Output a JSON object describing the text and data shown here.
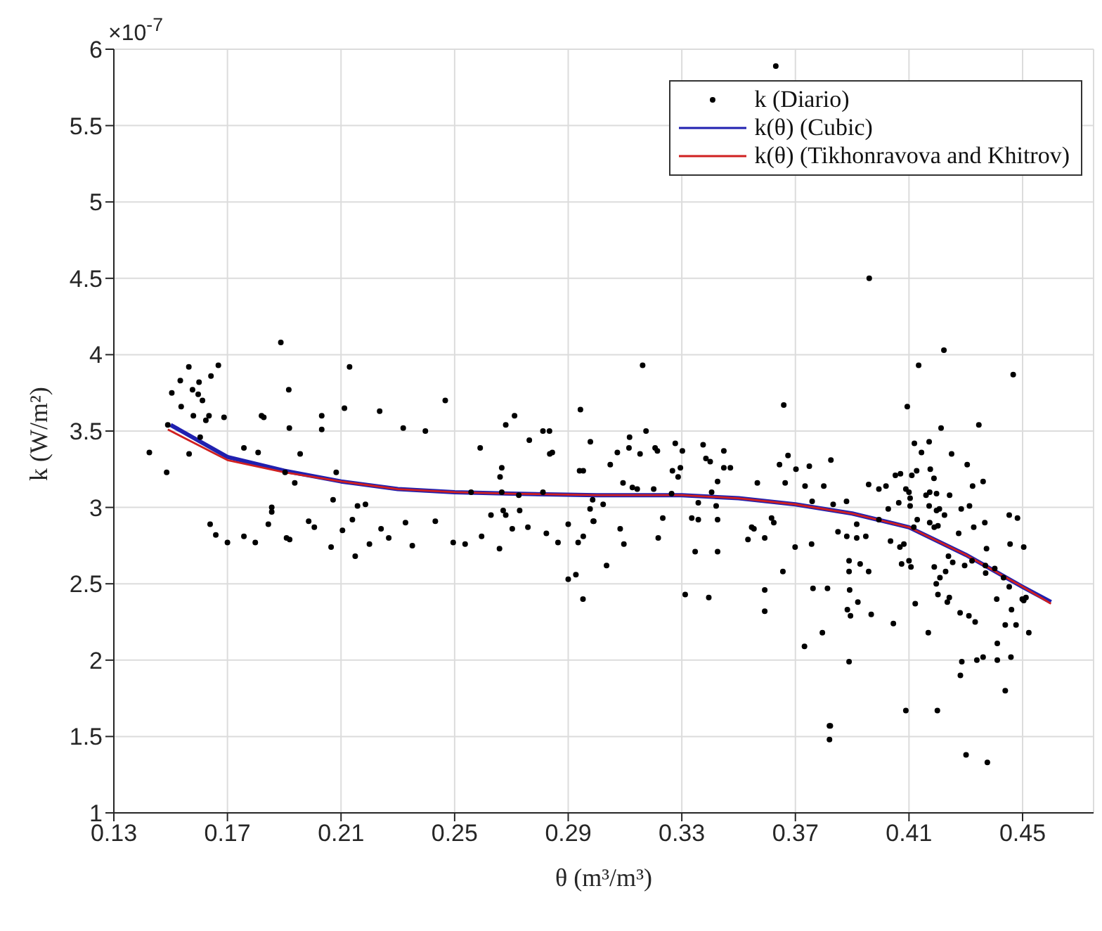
{
  "chart_data": {
    "type": "scatter",
    "xlabel": "θ (m³/m³)",
    "ylabel": "k (W/m²)",
    "annotations": [
      "×10$^{-7}$"
    ],
    "xlim": [
      0.13,
      0.475
    ],
    "xticks": [
      0.13,
      0.17,
      0.21,
      0.25,
      0.29,
      0.33,
      0.37,
      0.41,
      0.45
    ],
    "ylim": [
      1,
      6
    ],
    "yticks": [
      1,
      1.5,
      2,
      2.5,
      3,
      3.5,
      4,
      4.5,
      5,
      5.5,
      6
    ],
    "grid": true,
    "legend": "top right",
    "series": [
      {
        "name": "k (Diario)",
        "marker": "circle",
        "color": "#000000",
        "x": [
          0.1425,
          0.1486,
          0.149,
          0.1504,
          0.1534,
          0.1564,
          0.1537,
          0.1577,
          0.16,
          0.1597,
          0.1612,
          0.1642,
          0.1668,
          0.158,
          0.1624,
          0.1635,
          0.1688,
          0.1604,
          0.1565,
          0.1639,
          0.1659,
          0.17,
          0.1758,
          0.1798,
          0.1758,
          0.1808,
          0.182,
          0.1828,
          0.1888,
          0.1916,
          0.1918,
          0.1903,
          0.1937,
          0.1956,
          0.1856,
          0.1856,
          0.1844,
          0.1908,
          0.1919,
          0.1986,
          0.2006,
          0.2032,
          0.2032,
          0.2072,
          0.2065,
          0.2105,
          0.2112,
          0.2083,
          0.213,
          0.2236,
          0.2319,
          0.2397,
          0.2467,
          0.2158,
          0.2186,
          0.214,
          0.215,
          0.22,
          0.2241,
          0.2268,
          0.2327,
          0.2351,
          0.2432,
          0.2495,
          0.2537,
          0.2558,
          0.259,
          0.2595,
          0.2628,
          0.2658,
          0.266,
          0.2666,
          0.2666,
          0.2671,
          0.268,
          0.268,
          0.2711,
          0.2703,
          0.2729,
          0.2726,
          0.2758,
          0.2763,
          0.2811,
          0.2834,
          0.2835,
          0.2844,
          0.2811,
          0.2823,
          0.2864,
          0.29,
          0.29,
          0.2927,
          0.2935,
          0.2943,
          0.294,
          0.2953,
          0.2952,
          0.2953,
          0.2977,
          0.2978,
          0.2988,
          0.3162,
          0.3174,
          0.3073,
          0.3116,
          0.3114,
          0.3153,
          0.3206,
          0.3214,
          0.3048,
          0.3093,
          0.3126,
          0.3143,
          0.3201,
          0.2986,
          0.3023,
          0.299,
          0.3083,
          0.3096,
          0.3035,
          0.3233,
          0.3217,
          0.3267,
          0.3287,
          0.3295,
          0.3302,
          0.3277,
          0.3264,
          0.3312,
          0.3335,
          0.3358,
          0.3358,
          0.3347,
          0.3375,
          0.3385,
          0.34,
          0.3395,
          0.3421,
          0.3426,
          0.3448,
          0.3448,
          0.3471,
          0.3426,
          0.3426,
          0.3405,
          0.3566,
          0.3533,
          0.3546,
          0.3554,
          0.3592,
          0.3592,
          0.3592,
          0.3616,
          0.3624,
          0.3644,
          0.3674,
          0.3664,
          0.3659,
          0.3656,
          0.3699,
          0.3702,
          0.3749,
          0.3734,
          0.3759,
          0.3757,
          0.3762,
          0.3813,
          0.3732,
          0.3795,
          0.3825,
          0.38,
          0.3823,
          0.4223,
          0.4134,
          0.4467,
          0.4094,
          0.4213,
          0.4346,
          0.4119,
          0.4171,
          0.4144,
          0.425,
          0.4175,
          0.4305,
          0.4052,
          0.407,
          0.411,
          0.4127,
          0.4188,
          0.3958,
          0.3994,
          0.4019,
          0.4089,
          0.41,
          0.416,
          0.4173,
          0.4197,
          0.4243,
          0.4324,
          0.4361,
          0.4104,
          0.4104,
          0.4064,
          0.4027,
          0.388,
          0.3833,
          0.3994,
          0.385,
          0.3881,
          0.3916,
          0.3916,
          0.3948,
          0.4129,
          0.4171,
          0.4197,
          0.4207,
          0.4225,
          0.4173,
          0.4189,
          0.4202,
          0.4284,
          0.4313,
          0.4275,
          0.4328,
          0.4367,
          0.4373,
          0.4453,
          0.4482,
          0.4456,
          0.4504,
          0.4035,
          0.4068,
          0.4082,
          0.4117,
          0.3889,
          0.3889,
          0.3928,
          0.3958,
          0.4074,
          0.4107,
          0.41,
          0.4189,
          0.4209,
          0.4196,
          0.4229,
          0.4239,
          0.4254,
          0.4296,
          0.4322,
          0.4369,
          0.437,
          0.4402,
          0.4433,
          0.3891,
          0.392,
          0.3883,
          0.3894,
          0.3967,
          0.4045,
          0.4122,
          0.4202,
          0.4242,
          0.4235,
          0.4409,
          0.4453,
          0.4461,
          0.4499,
          0.4512,
          0.4504,
          0.428,
          0.4311,
          0.4333,
          0.4439,
          0.4477,
          0.4522,
          0.4168,
          0.4286,
          0.4281,
          0.4339,
          0.4361,
          0.4411,
          0.4411,
          0.4459,
          0.4439,
          0.3889,
          0.4089,
          0.42,
          0.382,
          0.382,
          0.4301,
          0.4376,
          0.3631,
          0.396
        ],
        "values": [
          3.36,
          3.23,
          3.54,
          3.75,
          3.83,
          3.92,
          3.66,
          3.77,
          3.82,
          3.74,
          3.7,
          3.86,
          3.93,
          3.6,
          3.57,
          3.6,
          3.59,
          3.46,
          3.35,
          2.89,
          2.82,
          2.77,
          2.81,
          2.77,
          3.39,
          3.36,
          3.6,
          3.59,
          4.08,
          3.77,
          3.52,
          3.23,
          3.16,
          3.35,
          3.0,
          2.97,
          2.89,
          2.8,
          2.79,
          2.91,
          2.87,
          3.6,
          3.51,
          3.05,
          2.74,
          2.85,
          3.65,
          3.23,
          3.92,
          3.63,
          3.52,
          3.5,
          3.7,
          3.01,
          3.02,
          2.92,
          2.68,
          2.76,
          2.86,
          2.8,
          2.9,
          2.75,
          2.91,
          2.77,
          2.76,
          3.1,
          3.39,
          2.81,
          2.95,
          2.73,
          3.2,
          3.26,
          3.1,
          2.98,
          2.95,
          3.54,
          3.6,
          2.86,
          2.98,
          3.08,
          2.87,
          3.44,
          3.5,
          3.5,
          3.35,
          3.36,
          3.1,
          2.83,
          2.77,
          2.89,
          2.53,
          2.56,
          2.77,
          3.64,
          3.24,
          3.24,
          2.4,
          2.81,
          2.99,
          3.43,
          2.91,
          3.93,
          3.5,
          3.36,
          3.46,
          3.39,
          3.35,
          3.39,
          3.37,
          3.28,
          3.16,
          3.13,
          3.12,
          3.12,
          3.05,
          3.02,
          2.91,
          2.86,
          2.76,
          2.62,
          2.93,
          2.8,
          3.24,
          3.2,
          3.26,
          3.37,
          3.42,
          3.09,
          2.43,
          2.93,
          2.92,
          3.03,
          2.71,
          3.41,
          3.32,
          3.3,
          2.41,
          3.01,
          3.17,
          3.37,
          3.26,
          3.26,
          2.92,
          2.71,
          3.1,
          3.16,
          2.79,
          2.87,
          2.86,
          2.8,
          2.46,
          2.32,
          2.93,
          2.9,
          3.28,
          3.34,
          3.16,
          3.67,
          2.58,
          2.74,
          3.25,
          3.27,
          3.14,
          3.04,
          2.76,
          2.47,
          2.47,
          2.09,
          2.18,
          3.31,
          3.14,
          1.57,
          4.03,
          3.93,
          3.87,
          3.66,
          3.52,
          3.54,
          3.42,
          3.43,
          3.36,
          3.35,
          3.25,
          3.28,
          3.21,
          3.22,
          3.21,
          3.24,
          3.19,
          3.15,
          3.12,
          3.14,
          3.12,
          3.1,
          3.08,
          3.1,
          3.09,
          3.08,
          3.14,
          3.17,
          3.06,
          3.01,
          3.03,
          2.99,
          3.04,
          3.02,
          2.92,
          2.84,
          2.81,
          2.89,
          2.8,
          2.81,
          2.92,
          3.01,
          2.98,
          2.99,
          2.95,
          2.9,
          2.87,
          2.88,
          2.99,
          3.01,
          2.83,
          2.87,
          2.9,
          2.73,
          2.95,
          2.93,
          2.76,
          2.74,
          2.78,
          2.74,
          2.76,
          2.87,
          2.65,
          2.58,
          2.63,
          2.58,
          2.63,
          2.61,
          2.65,
          2.61,
          2.54,
          2.5,
          2.58,
          2.68,
          2.64,
          2.62,
          2.65,
          2.62,
          2.57,
          2.6,
          2.54,
          2.46,
          2.38,
          2.33,
          2.29,
          2.3,
          2.24,
          2.37,
          2.43,
          2.41,
          2.38,
          2.4,
          2.48,
          2.33,
          2.4,
          2.41,
          2.39,
          2.31,
          2.29,
          2.25,
          2.23,
          2.23,
          2.18,
          2.18,
          1.99,
          1.9,
          2.0,
          2.02,
          2.11,
          2.0,
          2.02,
          1.8,
          1.99,
          1.67,
          1.67,
          1.57,
          1.48,
          1.38,
          1.33,
          5.89,
          4.5
        ]
      },
      {
        "name": "k(θ) (Cubic)",
        "type": "line",
        "marker": "none",
        "color": "#2020b0",
        "x": [
          0.15,
          0.17,
          0.19,
          0.21,
          0.23,
          0.25,
          0.27,
          0.3,
          0.33,
          0.35,
          0.37,
          0.39,
          0.41,
          0.43,
          0.45,
          0.46
        ],
        "values": [
          3.54,
          3.33,
          3.24,
          3.17,
          3.12,
          3.1,
          3.09,
          3.08,
          3.08,
          3.06,
          3.02,
          2.96,
          2.87,
          2.69,
          2.48,
          2.38
        ]
      },
      {
        "name": "k(θ) (Tikhonravova and Khitrov)",
        "type": "line",
        "marker": "none",
        "color": "#d02020",
        "x": [
          0.149,
          0.17,
          0.19,
          0.21,
          0.23,
          0.25,
          0.27,
          0.3,
          0.33,
          0.35,
          0.37,
          0.39,
          0.41,
          0.43,
          0.45,
          0.46
        ],
        "values": [
          3.51,
          3.31,
          3.23,
          3.17,
          3.12,
          3.1,
          3.09,
          3.08,
          3.08,
          3.06,
          3.02,
          2.96,
          2.87,
          2.69,
          2.48,
          2.37
        ]
      }
    ]
  }
}
